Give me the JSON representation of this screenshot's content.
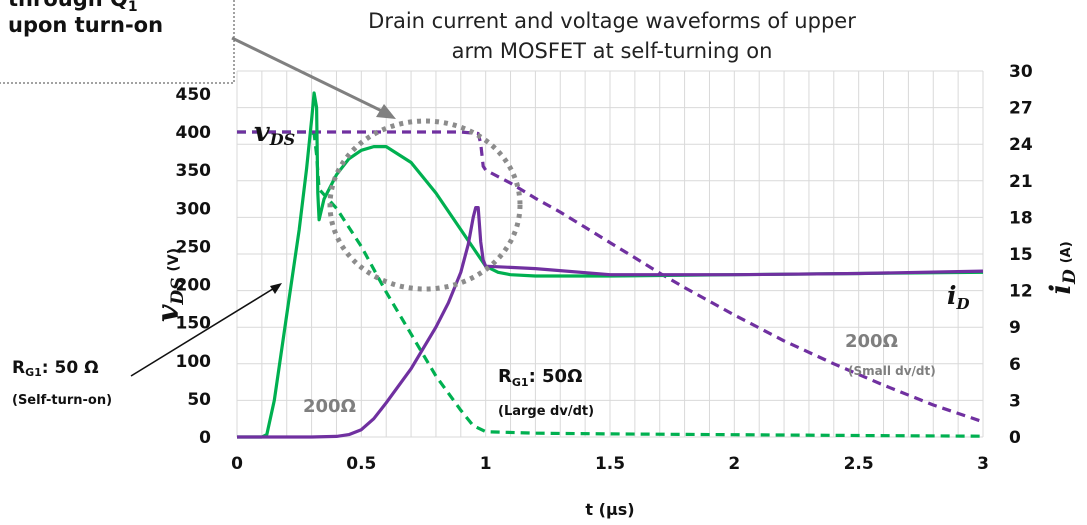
{
  "chart_data": {
    "type": "line",
    "title_line1": "Drain current and voltage waveforms of upper",
    "title_line2": "arm MOSFET at self-turning on",
    "xlabel": "t (μs)",
    "ylabel_left_symbol": "v",
    "ylabel_left_sub": "DS",
    "ylabel_left_unit": "(V)",
    "ylabel_right_symbol": "i",
    "ylabel_right_sub": "D",
    "ylabel_right_unit": "(A)",
    "xlim": [
      0,
      3
    ],
    "ylim_left": [
      0,
      480
    ],
    "ylim_right": [
      0,
      30
    ],
    "x_ticks": [
      "0",
      "0.5",
      "1",
      "1.5",
      "2",
      "2.5",
      "3"
    ],
    "y_left_ticks": [
      "0",
      "50",
      "100",
      "150",
      "200",
      "250",
      "300",
      "350",
      "400",
      "450"
    ],
    "y_right_ticks": [
      "0",
      "3",
      "6",
      "9",
      "12",
      "15",
      "18",
      "21",
      "24",
      "27",
      "30"
    ],
    "grid": true,
    "series": [
      {
        "axis": "left",
        "color": "#00b050",
        "dash": true,
        "points": [
          [
            0,
            400
          ],
          [
            0.28,
            400
          ],
          [
            0.31,
            398
          ],
          [
            0.32,
            370
          ],
          [
            0.33,
            325
          ],
          [
            0.4,
            300
          ],
          [
            0.5,
            250
          ],
          [
            0.6,
            190
          ],
          [
            0.7,
            135
          ],
          [
            0.8,
            80
          ],
          [
            0.9,
            35
          ],
          [
            0.95,
            15
          ],
          [
            1.0,
            7
          ],
          [
            1.2,
            5
          ],
          [
            1.5,
            4
          ],
          [
            2,
            3
          ],
          [
            2.5,
            2
          ],
          [
            3,
            1
          ]
        ]
      },
      {
        "axis": "left",
        "color": "#7030a0",
        "dash": true,
        "points": [
          [
            0,
            400
          ],
          [
            0.5,
            400
          ],
          [
            0.9,
            400
          ],
          [
            0.97,
            398
          ],
          [
            0.98,
            385
          ],
          [
            0.99,
            355
          ],
          [
            1.0,
            350
          ],
          [
            1.1,
            333
          ],
          [
            1.2,
            313
          ],
          [
            1.3,
            295
          ],
          [
            1.4,
            275
          ],
          [
            1.5,
            255
          ],
          [
            1.6,
            235
          ],
          [
            1.7,
            215
          ],
          [
            1.8,
            196
          ],
          [
            1.9,
            178
          ],
          [
            2.0,
            160
          ],
          [
            2.2,
            126
          ],
          [
            2.4,
            96
          ],
          [
            2.6,
            68
          ],
          [
            2.8,
            42
          ],
          [
            3.0,
            20
          ]
        ]
      },
      {
        "axis": "right",
        "color": "#00b050",
        "dash": false,
        "points": [
          [
            0,
            0
          ],
          [
            0.1,
            0
          ],
          [
            0.12,
            0.2
          ],
          [
            0.15,
            3
          ],
          [
            0.2,
            10
          ],
          [
            0.25,
            17
          ],
          [
            0.28,
            22
          ],
          [
            0.3,
            26
          ],
          [
            0.31,
            28.2
          ],
          [
            0.32,
            27
          ],
          [
            0.325,
            20
          ],
          [
            0.33,
            17.8
          ],
          [
            0.35,
            19.5
          ],
          [
            0.4,
            21.5
          ],
          [
            0.45,
            22.8
          ],
          [
            0.5,
            23.5
          ],
          [
            0.55,
            23.8
          ],
          [
            0.6,
            23.8
          ],
          [
            0.7,
            22.5
          ],
          [
            0.8,
            20
          ],
          [
            0.9,
            17
          ],
          [
            0.95,
            15.5
          ],
          [
            1.0,
            14
          ],
          [
            1.05,
            13.5
          ],
          [
            1.1,
            13.3
          ],
          [
            1.2,
            13.2
          ],
          [
            1.5,
            13.2
          ],
          [
            2,
            13.3
          ],
          [
            2.5,
            13.4
          ],
          [
            3,
            13.5
          ]
        ]
      },
      {
        "axis": "right",
        "color": "#7030a0",
        "dash": false,
        "points": [
          [
            0,
            0
          ],
          [
            0.3,
            0
          ],
          [
            0.4,
            0.05
          ],
          [
            0.45,
            0.2
          ],
          [
            0.5,
            0.6
          ],
          [
            0.55,
            1.5
          ],
          [
            0.6,
            2.8
          ],
          [
            0.7,
            5.6
          ],
          [
            0.8,
            9
          ],
          [
            0.85,
            11
          ],
          [
            0.9,
            13.5
          ],
          [
            0.93,
            15.8
          ],
          [
            0.95,
            18
          ],
          [
            0.96,
            18.8
          ],
          [
            0.97,
            18.8
          ],
          [
            0.98,
            16
          ],
          [
            0.99,
            14.5
          ],
          [
            1.0,
            14
          ],
          [
            1.2,
            13.8
          ],
          [
            1.5,
            13.3
          ],
          [
            2,
            13.3
          ],
          [
            2.5,
            13.4
          ],
          [
            3,
            13.6
          ]
        ]
      }
    ],
    "annotations": {
      "vds_symbol": "v",
      "vds_sub": "DS",
      "id_symbol": "i",
      "id_sub": "D",
      "rg1_self_main": "R",
      "rg1_self_sub": "G1",
      "rg1_self_value": ": 50 Ω",
      "rg1_self_note": "(Self-turn-on)",
      "rg1_large_main": "R",
      "rg1_large_sub": "G1",
      "rg1_large_value": ": 50Ω",
      "rg1_large_note": "(Large dv/dt)",
      "purple_200": "200Ω",
      "right_200": "200Ω",
      "small_note": "(Small dv/dt)",
      "box_line1": "through Q",
      "box_line1_sub": "1",
      "box_line2": "upon turn-on"
    },
    "colors": {
      "green": "#00b050",
      "purple": "#7030a0",
      "grid": "#d9d9d9",
      "arrow": "#808080",
      "circle": "#8c8c8c"
    }
  }
}
